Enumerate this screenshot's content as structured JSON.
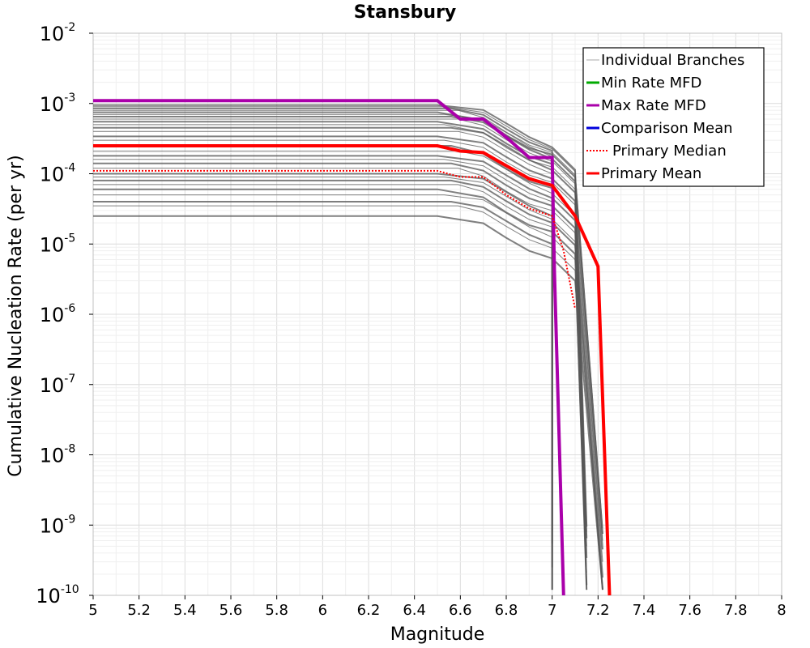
{
  "chart_data": {
    "type": "line",
    "title": "Stansbury",
    "xlabel": "Magnitude",
    "ylabel": "Cumulative Nucleation Rate (per yr)",
    "xlim": [
      5,
      8
    ],
    "ylim": [
      1e-10,
      0.01
    ],
    "yscale": "log",
    "grid": true,
    "legend_position": "top-right",
    "x_ticks": [
      "5",
      "5.2",
      "5.4",
      "5.6",
      "5.8",
      "6",
      "6.2",
      "6.4",
      "6.6",
      "6.8",
      "7",
      "7.2",
      "7.4",
      "7.6",
      "7.8",
      "8"
    ],
    "y_ticks": [
      {
        "base": "10",
        "exp": "-2"
      },
      {
        "base": "10",
        "exp": "-3"
      },
      {
        "base": "10",
        "exp": "-4"
      },
      {
        "base": "10",
        "exp": "-5"
      },
      {
        "base": "10",
        "exp": "-6"
      },
      {
        "base": "10",
        "exp": "-7"
      },
      {
        "base": "10",
        "exp": "-8"
      },
      {
        "base": "10",
        "exp": "-9"
      },
      {
        "base": "10",
        "exp": "-10"
      }
    ],
    "branch_levels": [
      0.00095,
      0.0009,
      0.00085,
      0.0008,
      0.00075,
      0.0007,
      0.00065,
      0.0006,
      0.00055,
      0.0005,
      0.00045,
      0.0004,
      0.00034,
      0.0003,
      0.00025,
      0.00021,
      0.00018,
      0.00016,
      0.00014,
      0.00012,
      0.0001,
      9e-05,
      8e-05,
      7e-05,
      6e-05,
      5e-05,
      4e-05,
      3.5e-05,
      2.5e-05
    ],
    "series": [
      {
        "name": "Individual Branches",
        "color": "#555555",
        "style": "solid",
        "note_from_image": "many thin gray curves"
      },
      {
        "name": "Min Rate MFD",
        "color": "#00aa00",
        "style": "solid",
        "x": [],
        "y": []
      },
      {
        "name": "Max Rate MFD",
        "color": "#aa00aa",
        "style": "solid",
        "x": [
          5.0,
          6.5,
          6.6,
          6.7,
          6.8,
          6.9,
          7.0,
          7.01,
          7.05
        ],
        "y": [
          0.0011,
          0.0011,
          0.0006,
          0.0006,
          0.00033,
          0.00017,
          0.00017,
          4e-06,
          1e-10
        ]
      },
      {
        "name": "Comparison Mean",
        "color": "#0000dd",
        "style": "solid",
        "x": [],
        "y": []
      },
      {
        "name": "Primary Median",
        "color": "#ff0000",
        "style": "dotted",
        "x": [
          5.0,
          6.5,
          6.6,
          6.7,
          6.8,
          6.9,
          7.0,
          7.05,
          7.1
        ],
        "y": [
          0.00011,
          0.00011,
          9e-05,
          9e-05,
          5e-05,
          3.2e-05,
          2.5e-05,
          8e-06,
          1.2e-06
        ]
      },
      {
        "name": "Primary Mean",
        "color": "#ff0000",
        "style": "solid",
        "x": [
          5.0,
          6.5,
          6.6,
          6.7,
          6.8,
          6.9,
          7.0,
          7.1,
          7.15,
          7.2,
          7.25
        ],
        "y": [
          0.00025,
          0.00025,
          0.00021,
          0.0002,
          0.00013,
          8.5e-05,
          6.8e-05,
          2.5e-05,
          1.1e-05,
          4.8e-06,
          1e-10
        ]
      }
    ]
  }
}
